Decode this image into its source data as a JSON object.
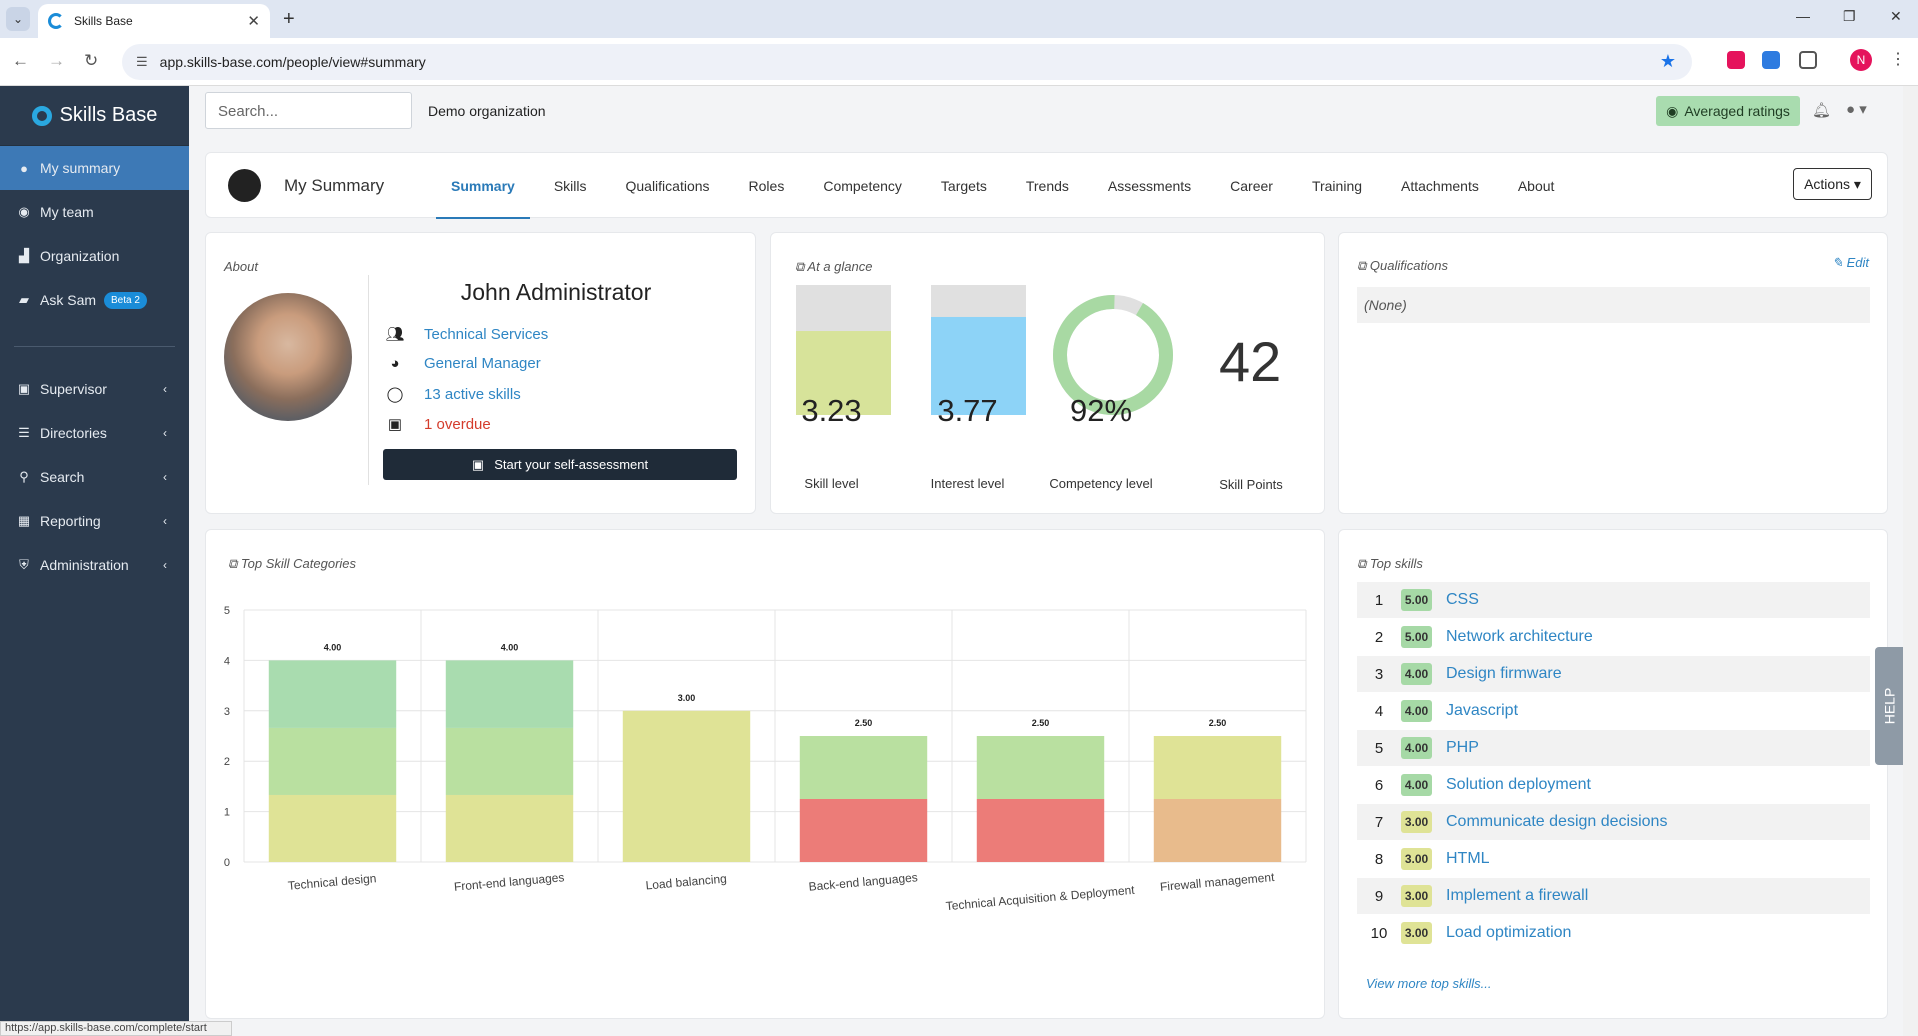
{
  "browser": {
    "tab_title": "Skills Base",
    "url": "app.skills-base.com/people/view#summary",
    "status_url": "https://app.skills-base.com/complete/start",
    "profile_initial": "N"
  },
  "sidebar": {
    "brand": "Skills Base",
    "items": [
      {
        "label": "My summary",
        "icon": "user-circle-icon"
      },
      {
        "label": "My team",
        "icon": "globe-icon"
      },
      {
        "label": "Organization",
        "icon": "building-icon"
      },
      {
        "label": "Ask Sam",
        "icon": "chat-icon",
        "badge": "Beta 2"
      }
    ],
    "groups": [
      {
        "label": "Supervisor",
        "icon": "calendar-icon"
      },
      {
        "label": "Directories",
        "icon": "list-icon"
      },
      {
        "label": "Search",
        "icon": "search-icon"
      },
      {
        "label": "Reporting",
        "icon": "chart-icon"
      },
      {
        "label": "Administration",
        "icon": "shield-icon"
      }
    ]
  },
  "topbar": {
    "search_placeholder": "Search...",
    "org": "Demo organization",
    "averaged_ratings": "Averaged ratings"
  },
  "header": {
    "title": "My Summary",
    "tabs": [
      "Summary",
      "Skills",
      "Qualifications",
      "Roles",
      "Competency",
      "Targets",
      "Trends",
      "Assessments",
      "Career",
      "Training",
      "Attachments",
      "About"
    ],
    "active_tab": "Summary",
    "actions": "Actions"
  },
  "about": {
    "label": "About",
    "name": "John Administrator",
    "department": "Technical Services",
    "role": "General Manager",
    "skills": "13 active skills",
    "overdue": "1 overdue",
    "self_assessment": "Start your self-assessment"
  },
  "glance": {
    "label": "At a glance",
    "skill_level": {
      "value": "3.23",
      "label": "Skill level",
      "fraction": 0.646
    },
    "interest_level": {
      "value": "3.77",
      "label": "Interest level",
      "fraction": 0.754
    },
    "competency": {
      "value": "92%",
      "label": "Competency level",
      "fraction": 0.92
    },
    "skill_points": {
      "value": "42",
      "label": "Skill Points"
    },
    "colors": {
      "skill": "#d7e39a",
      "interest": "#8dd3f7",
      "competency": "#a8d9a3",
      "empty": "#e0e0e0"
    }
  },
  "qualifications": {
    "label": "Qualifications",
    "edit": "Edit",
    "none": "(None)"
  },
  "top_categories": {
    "label": "Top Skill Categories"
  },
  "chart_data": {
    "type": "bar",
    "stacked": true,
    "categories": [
      "Technical design",
      "Front-end languages",
      "Load balancing",
      "Back-end languages",
      "Technical Acquisition & Deployment",
      "Firewall management"
    ],
    "totals": [
      "4.00",
      "4.00",
      "3.00",
      "2.50",
      "2.50",
      "2.50"
    ],
    "segments": [
      [
        {
          "v": 1.33,
          "c": "#dfe396"
        },
        {
          "v": 1.33,
          "c": "#b9e0a0"
        },
        {
          "v": 1.34,
          "c": "#a9dcaf"
        }
      ],
      [
        {
          "v": 1.33,
          "c": "#dfe396"
        },
        {
          "v": 1.33,
          "c": "#b9e0a0"
        },
        {
          "v": 1.34,
          "c": "#a9dcaf"
        }
      ],
      [
        {
          "v": 3.0,
          "c": "#dfe396"
        }
      ],
      [
        {
          "v": 1.25,
          "c": "#ec7c78"
        },
        {
          "v": 1.25,
          "c": "#b9e0a0"
        }
      ],
      [
        {
          "v": 1.25,
          "c": "#ec7c78"
        },
        {
          "v": 1.25,
          "c": "#b9e0a0"
        }
      ],
      [
        {
          "v": 1.25,
          "c": "#e8bb8c"
        },
        {
          "v": 1.25,
          "c": "#dfe396"
        }
      ]
    ],
    "ylim": [
      0,
      5
    ],
    "yticks": [
      "0",
      "1",
      "2",
      "3",
      "4",
      "5"
    ],
    "grid": true
  },
  "top_skills": {
    "label": "Top skills",
    "items": [
      {
        "rank": "1",
        "rating": "5.00",
        "name": "CSS",
        "tone": "g"
      },
      {
        "rank": "2",
        "rating": "5.00",
        "name": "Network architecture",
        "tone": "g"
      },
      {
        "rank": "3",
        "rating": "4.00",
        "name": "Design firmware",
        "tone": "g"
      },
      {
        "rank": "4",
        "rating": "4.00",
        "name": "Javascript",
        "tone": "g"
      },
      {
        "rank": "5",
        "rating": "4.00",
        "name": "PHP",
        "tone": "g"
      },
      {
        "rank": "6",
        "rating": "4.00",
        "name": "Solution deployment",
        "tone": "g"
      },
      {
        "rank": "7",
        "rating": "3.00",
        "name": "Communicate design decisions",
        "tone": "y"
      },
      {
        "rank": "8",
        "rating": "3.00",
        "name": "HTML",
        "tone": "y"
      },
      {
        "rank": "9",
        "rating": "3.00",
        "name": "Implement a firewall",
        "tone": "y"
      },
      {
        "rank": "10",
        "rating": "3.00",
        "name": "Load optimization",
        "tone": "y"
      }
    ],
    "view_more": "View more top skills..."
  },
  "help": "HELP"
}
